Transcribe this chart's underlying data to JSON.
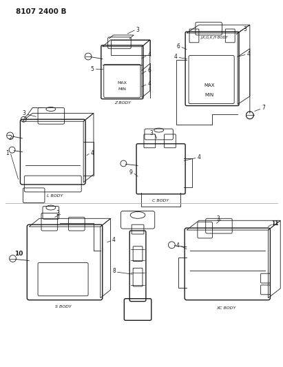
{
  "title": "8107 2400 B",
  "bg_color": "#ffffff",
  "fg_color": "#1a1a1a",
  "fig_width": 4.11,
  "fig_height": 5.33,
  "dpi": 100,
  "bodies": {
    "z_label": "Z BODY",
    "l_label": "L BODY",
    "c_label": "C BODY",
    "jkh_label": "J,K,G,K,H BODY",
    "s_label": "S BODY",
    "xc_label": "XC BODY"
  }
}
